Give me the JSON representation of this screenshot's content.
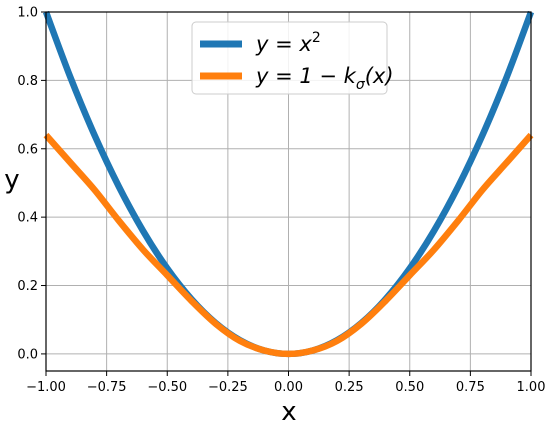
{
  "chart_data": {
    "type": "line",
    "title": "",
    "xlabel": "x",
    "ylabel": "y",
    "xlim": [
      -1.0,
      1.0
    ],
    "ylim": [
      -0.05,
      1.0
    ],
    "grid": true,
    "legend_position": "top-center",
    "x_ticks": [
      -1.0,
      -0.75,
      -0.5,
      -0.25,
      0.0,
      0.25,
      0.5,
      0.75,
      1.0
    ],
    "x_tick_labels": [
      "−1.00",
      "−0.75",
      "−0.50",
      "−0.25",
      "0.00",
      "0.25",
      "0.50",
      "0.75",
      "1.00"
    ],
    "y_ticks": [
      0.0,
      0.2,
      0.4,
      0.6,
      0.8,
      1.0
    ],
    "y_tick_labels": [
      "0.0",
      "0.2",
      "0.4",
      "0.6",
      "0.8",
      "1.0"
    ],
    "x": [
      -1.0,
      -0.9,
      -0.8,
      -0.7,
      -0.6,
      -0.5,
      -0.4,
      -0.3,
      -0.2,
      -0.1,
      0.0,
      0.1,
      0.2,
      0.3,
      0.4,
      0.5,
      0.6,
      0.7,
      0.8,
      0.9,
      1.0
    ],
    "series": [
      {
        "name": "y = x^2",
        "legend_base": "y = x",
        "legend_sup": "2",
        "color": "#1f77b4",
        "values": [
          1.0,
          0.81,
          0.64,
          0.49,
          0.36,
          0.25,
          0.16,
          0.09,
          0.04,
          0.01,
          0.0,
          0.01,
          0.04,
          0.09,
          0.16,
          0.25,
          0.36,
          0.49,
          0.64,
          0.81,
          1.0
        ]
      },
      {
        "name": "y = 1 − kσ(x)",
        "legend_base": "y = 1 − k",
        "legend_sub": "σ",
        "legend_tail": "(x)",
        "color": "#ff7f0e",
        "values": [
          0.64,
          0.56,
          0.48,
          0.39,
          0.305,
          0.23,
          0.155,
          0.088,
          0.038,
          0.01,
          0.0,
          0.01,
          0.038,
          0.088,
          0.155,
          0.23,
          0.305,
          0.39,
          0.48,
          0.56,
          0.64
        ]
      }
    ]
  }
}
